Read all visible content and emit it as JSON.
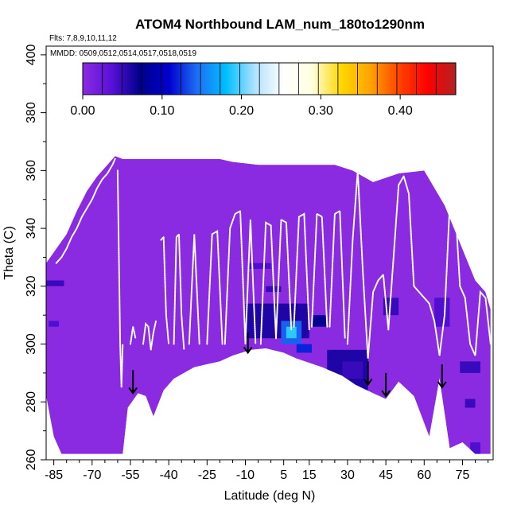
{
  "chart_data": {
    "type": "heatmap",
    "title": "ATOM4 Northbound LAM_num_180to1290nm",
    "subtitle_flights": "Flts: 7,8,9,10,11,12",
    "mmdd_label": "MMDD: 0509,0512,0514,0517,0518,0519",
    "xlabel": "Latitude (deg N)",
    "ylabel": "Theta (C)",
    "xlim": [
      -88,
      87
    ],
    "ylim": [
      260,
      403
    ],
    "x_ticks": [
      -85,
      -70,
      -55,
      -40,
      -25,
      -10,
      5,
      15,
      30,
      45,
      60,
      75
    ],
    "x_tick_labels": [
      "-85",
      "-70",
      "-55",
      "-40",
      "-25",
      "-10",
      "5",
      "15",
      "30",
      "45",
      "60",
      "75"
    ],
    "y_ticks": [
      260,
      280,
      300,
      320,
      340,
      360,
      380,
      400
    ],
    "y_tick_labels": [
      "260",
      "280",
      "300",
      "320",
      "340",
      "360",
      "380",
      "400"
    ],
    "colorbar": {
      "min": 0.0,
      "max": 0.47,
      "ticks": [
        0.0,
        0.1,
        0.2,
        0.3,
        0.4
      ],
      "tick_labels": [
        "0.00",
        "0.10",
        "0.20",
        "0.30",
        "0.40"
      ],
      "colors": [
        "#8a2be2",
        "#5a10d8",
        "#00008b",
        "#0000cd",
        "#1e6ff5",
        "#00bfff",
        "#b0e2ff",
        "#ffffff",
        "#ffffe0",
        "#ffd700",
        "#ffa500",
        "#ff4500",
        "#ff0000",
        "#b22222"
      ],
      "segments": 19
    },
    "base_value": 0.0,
    "base_color": "#8a2be2",
    "flight_track_color": "#ffffff",
    "arrow_latitudes": [
      -54,
      -9,
      38,
      45,
      67
    ],
    "arrow_theta_top": [
      291,
      304,
      294,
      290,
      293
    ],
    "arrow_theta_bottom": [
      283,
      297,
      286,
      282,
      285
    ],
    "upper_boundary": [
      [
        -88,
        328
      ],
      [
        -84,
        333
      ],
      [
        -80,
        338
      ],
      [
        -76,
        346
      ],
      [
        -72,
        353
      ],
      [
        -68,
        358
      ],
      [
        -64,
        362
      ],
      [
        -61,
        365
      ],
      [
        -58,
        364
      ],
      [
        -54,
        364
      ],
      [
        -50,
        364
      ],
      [
        -45,
        364
      ],
      [
        -40,
        364
      ],
      [
        -30,
        364
      ],
      [
        -20,
        364
      ],
      [
        -15,
        363
      ],
      [
        -5,
        362
      ],
      [
        5,
        362
      ],
      [
        15,
        362
      ],
      [
        25,
        362
      ],
      [
        32,
        360
      ],
      [
        40,
        356
      ],
      [
        50,
        359
      ],
      [
        60,
        360
      ],
      [
        68,
        348
      ],
      [
        74,
        335
      ],
      [
        80,
        322
      ],
      [
        84,
        318
      ],
      [
        86,
        312
      ]
    ],
    "lower_boundary": [
      [
        -88,
        282
      ],
      [
        -85,
        268
      ],
      [
        -82,
        262
      ],
      [
        -70,
        262
      ],
      [
        -58,
        262
      ],
      [
        -56,
        278
      ],
      [
        -52,
        283
      ],
      [
        -49,
        282
      ],
      [
        -46,
        275
      ],
      [
        -42,
        284
      ],
      [
        -38,
        288
      ],
      [
        -30,
        292
      ],
      [
        -20,
        294
      ],
      [
        -15,
        296
      ],
      [
        -8,
        298
      ],
      [
        -2,
        298.5
      ],
      [
        5,
        297
      ],
      [
        10,
        295
      ],
      [
        20,
        292
      ],
      [
        28,
        289
      ],
      [
        33,
        286
      ],
      [
        40,
        283
      ],
      [
        45,
        281
      ],
      [
        50,
        287
      ],
      [
        56,
        282
      ],
      [
        62,
        268
      ],
      [
        66,
        288
      ],
      [
        70,
        264
      ],
      [
        75,
        266
      ],
      [
        80,
        262
      ],
      [
        86,
        262
      ]
    ],
    "enhanced_patches": [
      {
        "lat": [
          -88,
          -81
        ],
        "theta": [
          320,
          322
        ],
        "value": 0.05
      },
      {
        "lat": [
          -87,
          -83
        ],
        "theta": [
          306,
          308
        ],
        "value": 0.04
      },
      {
        "lat": [
          -9,
          0
        ],
        "theta": [
          326,
          328
        ],
        "value": 0.04
      },
      {
        "lat": [
          -2,
          4
        ],
        "theta": [
          318,
          320
        ],
        "value": 0.05
      },
      {
        "lat": [
          -10,
          15
        ],
        "theta": [
          302,
          314
        ],
        "value": 0.06
      },
      {
        "lat": [
          4,
          12
        ],
        "theta": [
          300,
          308
        ],
        "value": 0.14
      },
      {
        "lat": [
          6,
          10
        ],
        "theta": [
          302,
          306
        ],
        "value": 0.19
      },
      {
        "lat": [
          10,
          16
        ],
        "theta": [
          297,
          300
        ],
        "value": 0.12
      },
      {
        "lat": [
          16,
          22
        ],
        "theta": [
          306,
          310
        ],
        "value": 0.07
      },
      {
        "lat": [
          22,
          38
        ],
        "theta": [
          284,
          298
        ],
        "value": 0.06
      },
      {
        "lat": [
          28,
          36
        ],
        "theta": [
          288,
          294
        ],
        "value": 0.05
      },
      {
        "lat": [
          44,
          50
        ],
        "theta": [
          310,
          316
        ],
        "value": 0.05
      },
      {
        "lat": [
          64,
          70
        ],
        "theta": [
          306,
          316
        ],
        "value": 0.04
      },
      {
        "lat": [
          74,
          82
        ],
        "theta": [
          290,
          294
        ],
        "value": 0.05
      },
      {
        "lat": [
          76,
          80
        ],
        "theta": [
          278,
          281
        ],
        "value": 0.05
      },
      {
        "lat": [
          78,
          82
        ],
        "theta": [
          262,
          266
        ],
        "value": 0.04
      }
    ],
    "flight_profiles": [
      {
        "lat": [
          -84,
          -82,
          -80,
          -78,
          -76,
          -74,
          -72,
          -70,
          -68,
          -66,
          -64,
          -62,
          -61
        ],
        "theta": [
          328,
          330,
          333,
          337,
          340,
          344,
          347,
          350,
          354,
          357,
          359,
          362,
          364
        ]
      },
      {
        "lat": [
          -60,
          -59.5,
          -59,
          -58.5,
          -58
        ],
        "theta": [
          360,
          330,
          300,
          285,
          300
        ]
      },
      {
        "lat": [
          -55,
          -54,
          -53
        ],
        "theta": [
          300,
          306,
          302
        ]
      },
      {
        "lat": [
          -50,
          -49,
          -48,
          -47,
          -46,
          -45
        ],
        "theta": [
          300,
          307,
          306,
          298,
          304,
          308
        ]
      },
      {
        "lat": [
          -43,
          -42,
          -41,
          -40
        ],
        "theta": [
          336,
          337,
          310,
          300
        ]
      },
      {
        "lat": [
          -38,
          -37,
          -36,
          -35,
          -34
        ],
        "theta": [
          300,
          337,
          338,
          310,
          298
        ]
      },
      {
        "lat": [
          -32,
          -30,
          -28
        ],
        "theta": [
          300,
          338,
          300
        ]
      },
      {
        "lat": [
          -25,
          -23,
          -21,
          -19
        ],
        "theta": [
          300,
          338,
          339,
          300
        ]
      },
      {
        "lat": [
          -18,
          -16,
          -14,
          -12,
          -10,
          -8,
          -6
        ],
        "theta": [
          300,
          340,
          345,
          346,
          300,
          343,
          300
        ]
      },
      {
        "lat": [
          -4,
          -2,
          0,
          2
        ],
        "theta": [
          300,
          342,
          341,
          302
        ]
      },
      {
        "lat": [
          2,
          4,
          6,
          8
        ],
        "theta": [
          302,
          343,
          342,
          305
        ]
      },
      {
        "lat": [
          9,
          11,
          13,
          15
        ],
        "theta": [
          306,
          344,
          345,
          305
        ]
      },
      {
        "lat": [
          16,
          18,
          20,
          22
        ],
        "theta": [
          306,
          345,
          344,
          306
        ]
      },
      {
        "lat": [
          23,
          25,
          27,
          29
        ],
        "theta": [
          306,
          345,
          346,
          302
        ]
      },
      {
        "lat": [
          30,
          32,
          34,
          36,
          38,
          40,
          42,
          44,
          46
        ],
        "theta": [
          300,
          336,
          360,
          325,
          295,
          318,
          322,
          324,
          305
        ]
      },
      {
        "lat": [
          46,
          48,
          50,
          52,
          54,
          56,
          58,
          60,
          62
        ],
        "theta": [
          305,
          330,
          355,
          358,
          352,
          320,
          318,
          316,
          314
        ]
      },
      {
        "lat": [
          62,
          64,
          66,
          68,
          70,
          72,
          74
        ],
        "theta": [
          314,
          308,
          296,
          310,
          348,
          350,
          320
        ]
      },
      {
        "lat": [
          74,
          76,
          78,
          80,
          82,
          84,
          86
        ],
        "theta": [
          320,
          316,
          300,
          296,
          318,
          316,
          300
        ]
      }
    ]
  }
}
